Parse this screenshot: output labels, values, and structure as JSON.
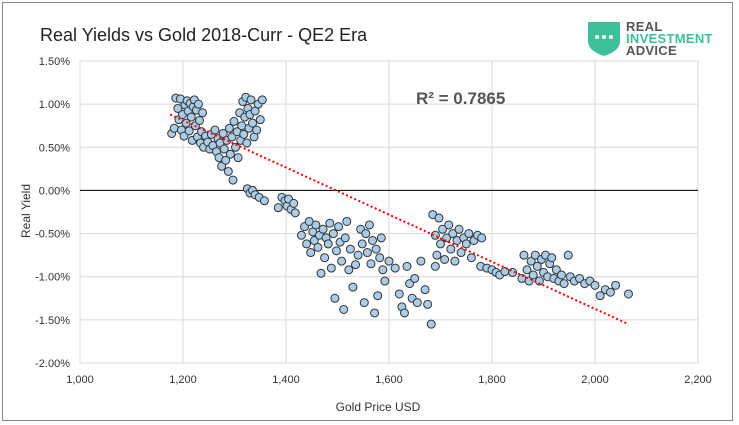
{
  "chart_data": {
    "type": "scatter",
    "title": "Real Yields vs Gold 2018-Curr - QE2 Era",
    "xlabel": "Gold Price USD",
    "ylabel": "Real Yield",
    "xlim": [
      1000,
      2200
    ],
    "ylim": [
      -2.0,
      1.5
    ],
    "x_ticks": [
      "1,000",
      "1,200",
      "1,400",
      "1,600",
      "1,800",
      "2,000",
      "2,200"
    ],
    "y_ticks": [
      "1.50%",
      "1.00%",
      "0.50%",
      "0.00%",
      "-0.50%",
      "-1.00%",
      "-1.50%",
      "-2.00%"
    ],
    "annotation": "R² = 0.7865",
    "grid": true,
    "marker_color": "#a9cce8",
    "trendline": {
      "style": "dotted",
      "color": "#ff0000",
      "x": [
        1175,
        2065
      ],
      "y": [
        0.88,
        -1.55
      ]
    },
    "points": [
      [
        1178,
        0.66
      ],
      [
        1183,
        0.72
      ],
      [
        1186,
        1.07
      ],
      [
        1190,
        0.95
      ],
      [
        1192,
        0.82
      ],
      [
        1195,
        1.06
      ],
      [
        1197,
        0.7
      ],
      [
        1199,
        0.88
      ],
      [
        1202,
        0.63
      ],
      [
        1204,
        0.99
      ],
      [
        1206,
        0.78
      ],
      [
        1208,
        1.04
      ],
      [
        1210,
        0.92
      ],
      [
        1212,
        0.69
      ],
      [
        1214,
        1.01
      ],
      [
        1216,
        0.85
      ],
      [
        1218,
        0.58
      ],
      [
        1220,
        0.97
      ],
      [
        1222,
        1.05
      ],
      [
        1224,
        0.75
      ],
      [
        1226,
        0.93
      ],
      [
        1228,
        0.62
      ],
      [
        1230,
        1.0
      ],
      [
        1232,
        0.81
      ],
      [
        1234,
        0.55
      ],
      [
        1236,
        0.68
      ],
      [
        1238,
        0.9
      ],
      [
        1240,
        0.5
      ],
      [
        1244,
        0.63
      ],
      [
        1248,
        0.56
      ],
      [
        1252,
        0.48
      ],
      [
        1255,
        0.65
      ],
      [
        1258,
        0.52
      ],
      [
        1262,
        0.7
      ],
      [
        1265,
        0.45
      ],
      [
        1268,
        0.6
      ],
      [
        1270,
        0.38
      ],
      [
        1272,
        0.55
      ],
      [
        1275,
        0.28
      ],
      [
        1278,
        0.66
      ],
      [
        1280,
        0.48
      ],
      [
        1283,
        0.35
      ],
      [
        1285,
        0.58
      ],
      [
        1288,
        0.22
      ],
      [
        1290,
        0.72
      ],
      [
        1292,
        0.42
      ],
      [
        1295,
        0.62
      ],
      [
        1297,
        0.12
      ],
      [
        1299,
        0.8
      ],
      [
        1302,
        0.5
      ],
      [
        1305,
        0.68
      ],
      [
        1307,
        0.38
      ],
      [
        1310,
        0.9
      ],
      [
        1312,
        0.58
      ],
      [
        1314,
        0.75
      ],
      [
        1316,
        1.03
      ],
      [
        1318,
        0.65
      ],
      [
        1320,
        0.85
      ],
      [
        1322,
        1.08
      ],
      [
        1324,
        0.55
      ],
      [
        1326,
        0.95
      ],
      [
        1328,
        0.72
      ],
      [
        1330,
        0.88
      ],
      [
        1332,
        1.05
      ],
      [
        1335,
        0.78
      ],
      [
        1338,
        0.62
      ],
      [
        1340,
        0.92
      ],
      [
        1343,
        0.7
      ],
      [
        1346,
        1.0
      ],
      [
        1350,
        0.82
      ],
      [
        1354,
        1.05
      ],
      [
        1325,
        0.02
      ],
      [
        1330,
        -0.03
      ],
      [
        1335,
        0.0
      ],
      [
        1340,
        -0.05
      ],
      [
        1348,
        -0.08
      ],
      [
        1358,
        -0.12
      ],
      [
        1392,
        -0.08
      ],
      [
        1398,
        -0.12
      ],
      [
        1402,
        -0.18
      ],
      [
        1405,
        -0.1
      ],
      [
        1410,
        -0.22
      ],
      [
        1415,
        -0.15
      ],
      [
        1418,
        -0.26
      ],
      [
        1385,
        -0.2
      ],
      [
        1430,
        -0.52
      ],
      [
        1436,
        -0.42
      ],
      [
        1440,
        -0.62
      ],
      [
        1445,
        -0.36
      ],
      [
        1448,
        -0.72
      ],
      [
        1452,
        -0.48
      ],
      [
        1455,
        -0.58
      ],
      [
        1458,
        -0.4
      ],
      [
        1462,
        -0.66
      ],
      [
        1465,
        -0.52
      ],
      [
        1468,
        -0.96
      ],
      [
        1472,
        -0.45
      ],
      [
        1475,
        -0.78
      ],
      [
        1478,
        -0.55
      ],
      [
        1482,
        -0.62
      ],
      [
        1485,
        -0.38
      ],
      [
        1488,
        -0.9
      ],
      [
        1492,
        -0.5
      ],
      [
        1495,
        -1.25
      ],
      [
        1498,
        -0.7
      ],
      [
        1502,
        -0.42
      ],
      [
        1505,
        -0.6
      ],
      [
        1508,
        -0.82
      ],
      [
        1512,
        -1.38
      ],
      [
        1515,
        -0.55
      ],
      [
        1518,
        -0.36
      ],
      [
        1522,
        -0.92
      ],
      [
        1525,
        -0.68
      ],
      [
        1530,
        -1.12
      ],
      [
        1535,
        -0.86
      ],
      [
        1540,
        -0.75
      ],
      [
        1545,
        -0.45
      ],
      [
        1548,
        -0.62
      ],
      [
        1552,
        -1.3
      ],
      [
        1555,
        -0.5
      ],
      [
        1558,
        -0.72
      ],
      [
        1562,
        -0.4
      ],
      [
        1565,
        -0.85
      ],
      [
        1568,
        -0.58
      ],
      [
        1572,
        -1.42
      ],
      [
        1575,
        -0.68
      ],
      [
        1578,
        -1.22
      ],
      [
        1582,
        -0.78
      ],
      [
        1585,
        -0.55
      ],
      [
        1588,
        -0.92
      ],
      [
        1592,
        -1.05
      ],
      [
        1600,
        -0.82
      ],
      [
        1612,
        -0.9
      ],
      [
        1620,
        -1.2
      ],
      [
        1625,
        -1.35
      ],
      [
        1630,
        -1.42
      ],
      [
        1635,
        -0.88
      ],
      [
        1640,
        -1.08
      ],
      [
        1645,
        -1.25
      ],
      [
        1650,
        -1.02
      ],
      [
        1655,
        -1.3
      ],
      [
        1662,
        -0.82
      ],
      [
        1670,
        -1.15
      ],
      [
        1675,
        -1.32
      ],
      [
        1682,
        -1.55
      ],
      [
        1690,
        -0.88
      ],
      [
        1685,
        -0.28
      ],
      [
        1690,
        -0.52
      ],
      [
        1693,
        -0.75
      ],
      [
        1697,
        -0.32
      ],
      [
        1700,
        -0.62
      ],
      [
        1704,
        -0.45
      ],
      [
        1708,
        -0.8
      ],
      [
        1712,
        -0.55
      ],
      [
        1716,
        -0.4
      ],
      [
        1720,
        -0.68
      ],
      [
        1724,
        -0.5
      ],
      [
        1728,
        -0.82
      ],
      [
        1732,
        -0.58
      ],
      [
        1736,
        -0.45
      ],
      [
        1740,
        -0.72
      ],
      [
        1745,
        -0.55
      ],
      [
        1750,
        -0.62
      ],
      [
        1755,
        -0.5
      ],
      [
        1760,
        -0.78
      ],
      [
        1765,
        -0.58
      ],
      [
        1772,
        -0.52
      ],
      [
        1780,
        -0.55
      ],
      [
        1778,
        -0.88
      ],
      [
        1790,
        -0.9
      ],
      [
        1800,
        -0.92
      ],
      [
        1808,
        -0.95
      ],
      [
        1815,
        -0.98
      ],
      [
        1825,
        -0.94
      ],
      [
        1840,
        -0.95
      ],
      [
        1858,
        -1.02
      ],
      [
        1862,
        -0.75
      ],
      [
        1868,
        -0.92
      ],
      [
        1872,
        -1.05
      ],
      [
        1876,
        -0.82
      ],
      [
        1880,
        -0.98
      ],
      [
        1884,
        -0.75
      ],
      [
        1888,
        -0.88
      ],
      [
        1892,
        -1.05
      ],
      [
        1896,
        -0.8
      ],
      [
        1900,
        -0.95
      ],
      [
        1904,
        -0.75
      ],
      [
        1908,
        -1.0
      ],
      [
        1912,
        -0.85
      ],
      [
        1916,
        -0.78
      ],
      [
        1920,
        -1.02
      ],
      [
        1925,
        -0.92
      ],
      [
        1930,
        -1.05
      ],
      [
        1935,
        -0.98
      ],
      [
        1940,
        -1.08
      ],
      [
        1948,
        -0.75
      ],
      [
        1952,
        -1.0
      ],
      [
        1960,
        -1.05
      ],
      [
        1970,
        -1.02
      ],
      [
        1980,
        -1.08
      ],
      [
        1990,
        -1.05
      ],
      [
        2000,
        -1.1
      ],
      [
        2010,
        -1.22
      ],
      [
        2020,
        -1.15
      ],
      [
        2030,
        -1.18
      ],
      [
        2040,
        -1.1
      ],
      [
        2065,
        -1.2
      ]
    ]
  },
  "logo": {
    "line1": "REAL",
    "line2": "INVESTMENT",
    "line3": "ADVICE",
    "color": "#3dbf9a"
  }
}
